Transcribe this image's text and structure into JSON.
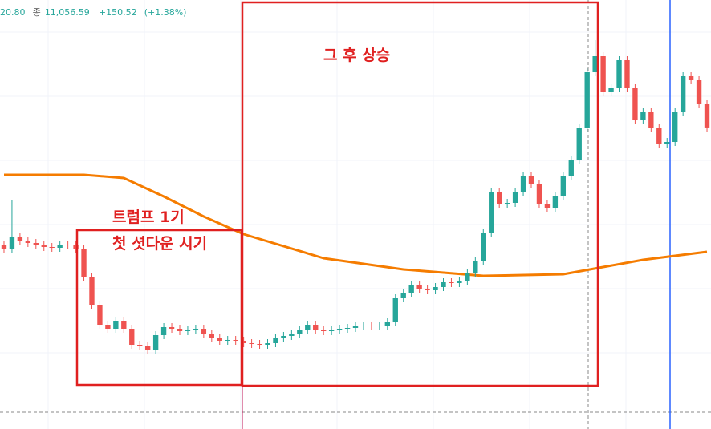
{
  "header": {
    "partial_value": "20.80",
    "close_label": "종",
    "close_value": "11,056.59",
    "change": "+150.52",
    "change_pct": "(+1.38%)"
  },
  "annotations": {
    "box1_line1": "트럼프 1기",
    "box1_line2": "첫 셧다운 시기",
    "box2": "그 후 상승"
  },
  "chart_data": {
    "type": "candlestick",
    "ylim": [
      7306,
      12656
    ],
    "up_color": "#26a69a",
    "down_color": "#ef5350",
    "open": [
      9606,
      9556,
      9706,
      9656,
      9626,
      9596,
      9576,
      9566,
      9606,
      9596,
      9556,
      9206,
      8856,
      8606,
      8556,
      8656,
      8556,
      8356,
      8336,
      8286,
      8476,
      8576,
      8556,
      8526,
      8546,
      8556,
      8496,
      8436,
      8406,
      8416,
      8406,
      8376,
      8366,
      8356,
      8376,
      8436,
      8466,
      8496,
      8536,
      8606,
      8536,
      8526,
      8546,
      8556,
      8566,
      8586,
      8596,
      8586,
      8596,
      8636,
      8936,
      9006,
      9106,
      9056,
      9036,
      9076,
      9136,
      9126,
      9156,
      9256,
      9406,
      9756,
      10256,
      10106,
      10126,
      10256,
      10456,
      10356,
      10106,
      10056,
      10206,
      10456,
      10656,
      11056,
      11756,
      11956,
      11506,
      11556,
      11906,
      11556,
      11156,
      11256,
      11056,
      10856,
      10886,
      11256,
      11706,
      11656,
      11356
    ],
    "high": [
      9656,
      10156,
      9756,
      9706,
      9676,
      9646,
      9626,
      9656,
      9656,
      9646,
      9606,
      9256,
      8906,
      8656,
      8706,
      8706,
      8606,
      8406,
      8386,
      8526,
      8626,
      8626,
      8606,
      8596,
      8606,
      8606,
      8546,
      8486,
      8466,
      8466,
      8456,
      8426,
      8416,
      8426,
      8486,
      8516,
      8546,
      8586,
      8656,
      8656,
      8586,
      8596,
      8606,
      8616,
      8636,
      8646,
      8646,
      8646,
      8686,
      8986,
      9056,
      9156,
      9156,
      9106,
      9126,
      9186,
      9186,
      9206,
      9306,
      9456,
      9806,
      10306,
      10306,
      10176,
      10306,
      10506,
      10506,
      10406,
      10156,
      10256,
      10506,
      10706,
      11106,
      11806,
      12156,
      12006,
      11606,
      11956,
      11956,
      11606,
      11306,
      11306,
      11106,
      10936,
      11306,
      11756,
      11756,
      11706,
      11406
    ],
    "low": [
      9506,
      9506,
      9606,
      9576,
      9546,
      9526,
      9516,
      9516,
      9546,
      9506,
      9156,
      8806,
      8556,
      8506,
      8506,
      8506,
      8306,
      8286,
      8236,
      8236,
      8426,
      8506,
      8476,
      8476,
      8496,
      8446,
      8386,
      8356,
      8356,
      8356,
      8326,
      8316,
      8306,
      8306,
      8326,
      8386,
      8416,
      8446,
      8486,
      8486,
      8476,
      8476,
      8496,
      8506,
      8516,
      8536,
      8536,
      8536,
      8546,
      8586,
      8886,
      8956,
      9006,
      8986,
      8986,
      9026,
      9076,
      9076,
      9106,
      9206,
      9356,
      9706,
      10056,
      10056,
      10076,
      10206,
      10306,
      10056,
      10006,
      10006,
      10156,
      10406,
      10606,
      11006,
      11706,
      11456,
      11456,
      11506,
      11506,
      11106,
      11106,
      11006,
      10806,
      10806,
      10836,
      11206,
      11606,
      11306,
      11006
    ],
    "close": [
      9556,
      9706,
      9656,
      9626,
      9596,
      9576,
      9566,
      9606,
      9596,
      9556,
      9206,
      8856,
      8606,
      8556,
      8656,
      8556,
      8356,
      8336,
      8286,
      8476,
      8576,
      8556,
      8526,
      8546,
      8556,
      8496,
      8436,
      8406,
      8416,
      8406,
      8376,
      8366,
      8356,
      8376,
      8436,
      8466,
      8496,
      8536,
      8606,
      8536,
      8526,
      8546,
      8556,
      8566,
      8586,
      8596,
      8586,
      8596,
      8636,
      8936,
      9006,
      9106,
      9056,
      9036,
      9076,
      9136,
      9126,
      9156,
      9256,
      9406,
      9756,
      10256,
      10106,
      10126,
      10256,
      10456,
      10356,
      10106,
      10056,
      10206,
      10456,
      10656,
      11056,
      11756,
      11956,
      11506,
      11556,
      11906,
      11556,
      11156,
      11256,
      11056,
      10856,
      10886,
      11256,
      11706,
      11656,
      11356,
      11056.59
    ],
    "moving_average": {
      "color": "#f57c00",
      "x": [
        0,
        10,
        15,
        20,
        25,
        30,
        40,
        50,
        60,
        70,
        75,
        80,
        88
      ],
      "values": [
        10476,
        10476,
        10436,
        10206,
        9956,
        9736,
        9436,
        9296,
        9216,
        9236,
        9326,
        9416,
        9516
      ]
    }
  }
}
